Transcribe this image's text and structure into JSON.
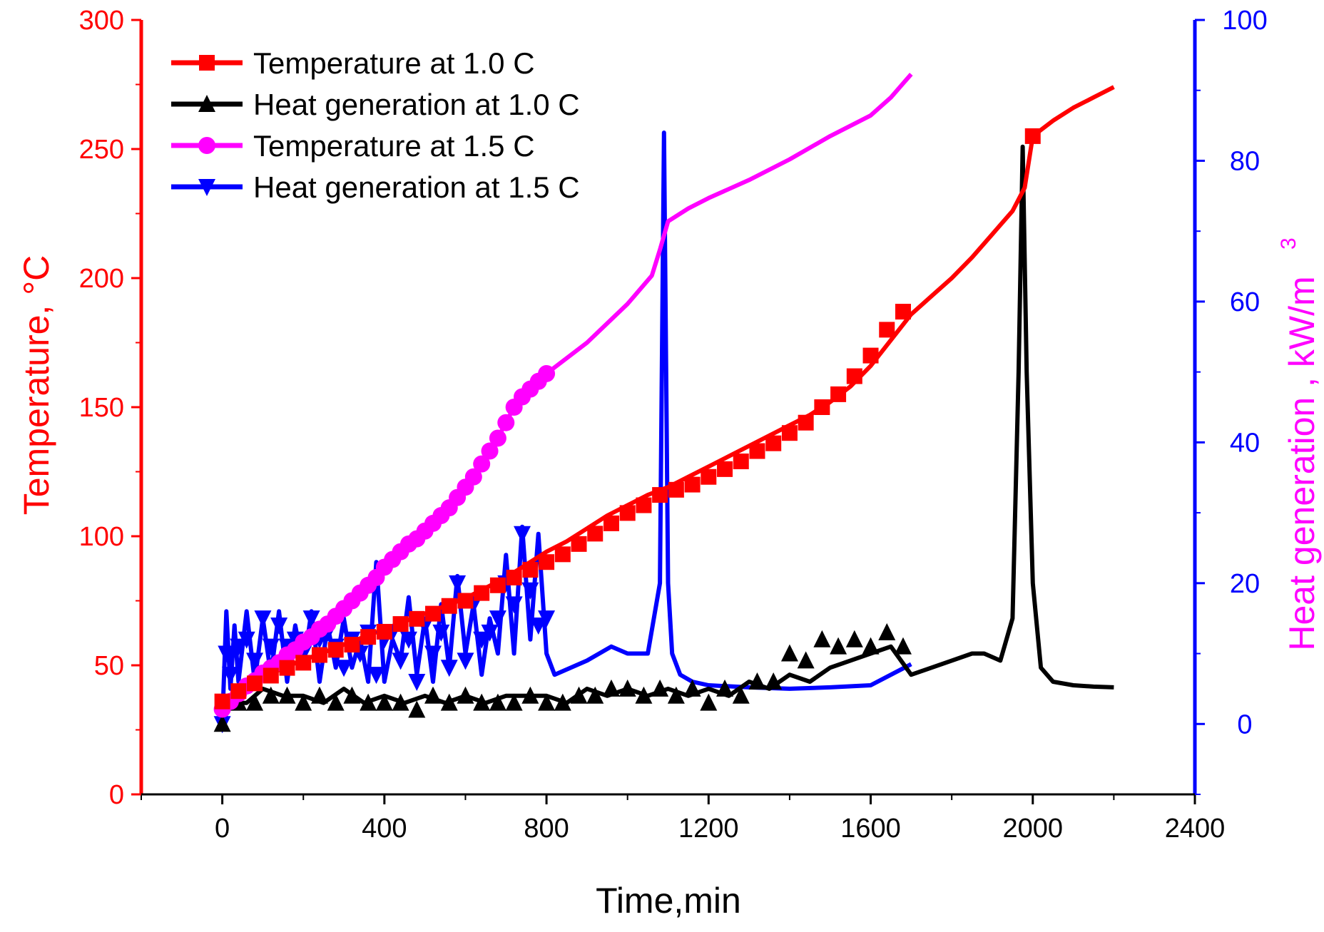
{
  "colors": {
    "red": "#ff0000",
    "black": "#000000",
    "magenta": "#ff00ff",
    "blue": "#0000ff"
  },
  "chart_data": {
    "type": "line",
    "title": "",
    "xlabel": "Time,min",
    "ylabel_left": "Temperature, °C",
    "ylabel_right": "Heat generation , kW/m",
    "ylabel_right_sup": "3",
    "xlim": [
      -200,
      2400
    ],
    "ylim_left": [
      0,
      300
    ],
    "ylim_right": [
      -10,
      100
    ],
    "x_ticks": [
      0,
      400,
      800,
      1200,
      1600,
      2000,
      2400
    ],
    "y_left_ticks": [
      0,
      50,
      100,
      150,
      200,
      250,
      300
    ],
    "y_right_ticks": [
      0,
      20,
      40,
      60,
      80,
      100
    ],
    "legend_position": "top-left",
    "series": [
      {
        "name": "Temperature at 1.0 C",
        "axis": "left",
        "color": "#ff0000",
        "marker": "square",
        "x": [
          0,
          50,
          100,
          150,
          200,
          250,
          300,
          350,
          400,
          450,
          500,
          550,
          600,
          650,
          700,
          750,
          800,
          850,
          900,
          950,
          1000,
          1050,
          1100,
          1150,
          1200,
          1250,
          1300,
          1350,
          1400,
          1450,
          1500,
          1550,
          1600,
          1650,
          1700,
          1750,
          1800,
          1850,
          1900,
          1950,
          1980,
          2000,
          2050,
          2100,
          2150,
          2200
        ],
        "y": [
          36,
          41,
          45,
          49,
          52,
          55,
          58,
          61,
          64,
          67,
          70,
          73,
          76,
          80,
          84,
          89,
          94,
          98,
          103,
          108,
          112,
          116,
          119,
          123,
          127,
          131,
          135,
          139,
          143,
          147,
          152,
          158,
          166,
          176,
          186,
          193,
          200,
          208,
          217,
          226,
          235,
          255,
          261,
          266,
          270,
          274
        ],
        "marker_x": [
          0,
          40,
          80,
          120,
          160,
          200,
          240,
          280,
          320,
          360,
          400,
          440,
          480,
          520,
          560,
          600,
          640,
          680,
          720,
          760,
          800,
          840,
          880,
          920,
          960,
          1000,
          1040,
          1080,
          1120,
          1160,
          1200,
          1240,
          1280,
          1320,
          1360,
          1400,
          1440,
          1480,
          1520,
          1560,
          1600,
          1640,
          1680,
          2000
        ],
        "marker_y": [
          36,
          40,
          43,
          46,
          49,
          51,
          54,
          56,
          58,
          61,
          63,
          66,
          68,
          70,
          73,
          75,
          78,
          81,
          84,
          87,
          90,
          93,
          97,
          101,
          105,
          109,
          112,
          116,
          118,
          120,
          123,
          126,
          129,
          133,
          136,
          140,
          144,
          150,
          155,
          162,
          170,
          180,
          187,
          255
        ]
      },
      {
        "name": "Heat generation at 1.0 C",
        "axis": "right",
        "color": "#000000",
        "marker": "triangle-up",
        "x": [
          0,
          20,
          60,
          100,
          150,
          200,
          250,
          300,
          350,
          400,
          450,
          500,
          550,
          600,
          650,
          700,
          750,
          800,
          850,
          900,
          950,
          1000,
          1050,
          1100,
          1150,
          1200,
          1250,
          1300,
          1350,
          1400,
          1450,
          1500,
          1550,
          1600,
          1650,
          1700,
          1750,
          1800,
          1850,
          1880,
          1920,
          1950,
          1965,
          1975,
          1985,
          2000,
          2020,
          2050,
          2100,
          2150,
          2200
        ],
        "y": [
          0,
          3,
          3,
          5,
          4,
          4,
          3,
          5,
          3,
          4,
          3,
          4,
          3,
          4,
          3,
          4,
          4,
          4,
          3,
          5,
          4,
          5,
          4,
          5,
          4,
          5,
          4,
          6,
          5,
          7,
          6,
          8,
          9,
          10,
          11,
          7,
          8,
          9,
          10,
          10,
          9,
          15,
          50,
          82,
          50,
          20,
          8,
          6,
          5.5,
          5.3,
          5.2
        ],
        "marker_x": [
          0,
          40,
          80,
          120,
          160,
          200,
          240,
          280,
          320,
          360,
          400,
          440,
          480,
          520,
          560,
          600,
          640,
          680,
          720,
          760,
          800,
          840,
          880,
          920,
          960,
          1000,
          1040,
          1080,
          1120,
          1160,
          1200,
          1240,
          1280,
          1320,
          1360,
          1400,
          1440,
          1480,
          1520,
          1560,
          1600,
          1640,
          1680
        ],
        "marker_y": [
          0,
          3,
          3,
          4,
          4,
          3,
          4,
          3,
          4,
          3,
          3,
          3,
          2,
          4,
          3,
          4,
          3,
          3,
          3,
          4,
          3,
          3,
          4,
          4,
          5,
          5,
          4,
          5,
          4,
          5,
          3,
          5,
          4,
          6,
          6,
          10,
          9,
          12,
          11,
          12,
          11,
          13,
          11
        ]
      },
      {
        "name": "Temperature at 1.5 C",
        "axis": "left",
        "color": "#ff00ff",
        "marker": "circle",
        "x": [
          0,
          40,
          80,
          120,
          160,
          200,
          240,
          280,
          320,
          360,
          400,
          440,
          480,
          520,
          560,
          600,
          640,
          680,
          720,
          760,
          800,
          900,
          1000,
          1060,
          1080,
          1100,
          1150,
          1200,
          1300,
          1400,
          1500,
          1600,
          1650,
          1700
        ],
        "y": [
          33,
          39,
          44,
          49,
          54,
          59,
          64,
          69,
          75,
          81,
          88,
          94,
          99,
          105,
          111,
          119,
          128,
          138,
          150,
          157,
          163,
          175,
          190,
          201,
          211,
          222,
          227,
          231,
          238,
          246,
          255,
          263,
          270,
          279
        ],
        "marker_x": [
          0,
          20,
          40,
          60,
          80,
          100,
          120,
          140,
          160,
          180,
          200,
          220,
          240,
          260,
          280,
          300,
          320,
          340,
          360,
          380,
          400,
          420,
          440,
          460,
          480,
          500,
          520,
          540,
          560,
          580,
          600,
          620,
          640,
          660,
          680,
          700,
          720,
          740,
          760,
          780,
          800
        ],
        "marker_y": [
          33,
          36,
          39,
          42,
          44,
          47,
          49,
          51,
          54,
          56,
          59,
          61,
          64,
          66,
          69,
          72,
          75,
          78,
          81,
          84,
          88,
          91,
          94,
          97,
          99,
          102,
          105,
          108,
          111,
          115,
          119,
          123,
          128,
          133,
          138,
          144,
          150,
          154,
          157,
          160,
          163
        ]
      },
      {
        "name": "Heat generation at 1.5 C",
        "axis": "right",
        "color": "#0000ff",
        "marker": "triangle-down",
        "x": [
          0,
          10,
          20,
          30,
          40,
          60,
          80,
          100,
          120,
          140,
          160,
          180,
          200,
          220,
          240,
          260,
          280,
          300,
          320,
          340,
          360,
          380,
          400,
          420,
          440,
          460,
          480,
          500,
          520,
          540,
          560,
          580,
          600,
          620,
          640,
          660,
          680,
          700,
          720,
          740,
          760,
          780,
          800,
          820,
          900,
          960,
          1000,
          1050,
          1080,
          1090,
          1100,
          1110,
          1130,
          1160,
          1200,
          1300,
          1400,
          1500,
          1600,
          1700
        ],
        "y": [
          0,
          16,
          5,
          14,
          6,
          16,
          6,
          15,
          7,
          16,
          6,
          14,
          8,
          16,
          6,
          14,
          8,
          15,
          8,
          12,
          6,
          23,
          6,
          12,
          9,
          18,
          7,
          15,
          6,
          17,
          8,
          21,
          10,
          17,
          7,
          15,
          10,
          24,
          10,
          28,
          12,
          27,
          10,
          7,
          9,
          11,
          10,
          10,
          20,
          84,
          20,
          10,
          7,
          6,
          5.5,
          5.2,
          5,
          5.2,
          5.5,
          8.5
        ],
        "marker_x": [
          0,
          10,
          20,
          40,
          60,
          80,
          100,
          120,
          140,
          160,
          180,
          200,
          220,
          240,
          260,
          280,
          300,
          320,
          340,
          360,
          380,
          400,
          420,
          440,
          460,
          480,
          500,
          520,
          540,
          560,
          580,
          600,
          620,
          640,
          660,
          680,
          700,
          720,
          740,
          760,
          780,
          800
        ],
        "marker_y": [
          0,
          10,
          7,
          11,
          12,
          9,
          15,
          11,
          14,
          11,
          12,
          10,
          15,
          12,
          13,
          11,
          8,
          12,
          10,
          13,
          7,
          12,
          13,
          9,
          12,
          6,
          14,
          10,
          13,
          8,
          20,
          9,
          17,
          12,
          13,
          15,
          20,
          17,
          27,
          19,
          14,
          15
        ]
      }
    ]
  }
}
